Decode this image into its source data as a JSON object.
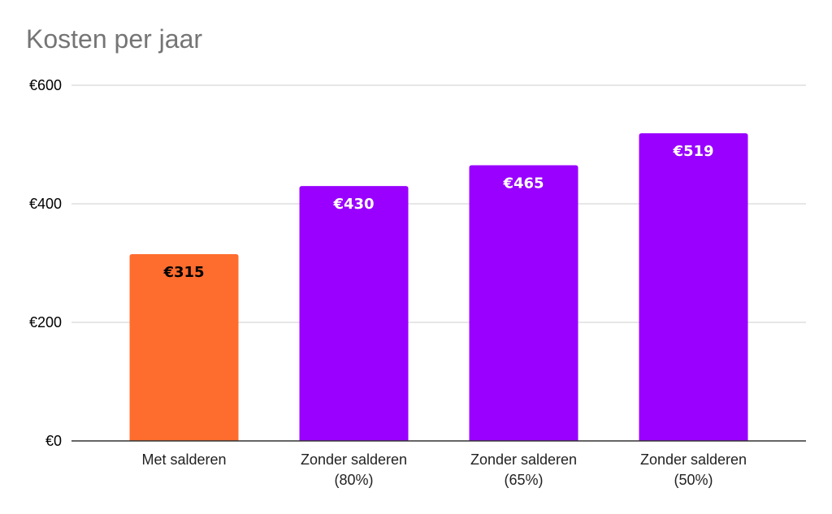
{
  "chart_data": {
    "type": "bar",
    "title": "Kosten per jaar",
    "xlabel": "",
    "ylabel": "",
    "ylim": [
      0,
      600
    ],
    "yticks": [
      {
        "value": 0,
        "label": "€0"
      },
      {
        "value": 200,
        "label": "€200"
      },
      {
        "value": 400,
        "label": "€400"
      },
      {
        "value": 600,
        "label": "€600"
      }
    ],
    "categories": [
      [
        "Met salderen"
      ],
      [
        "Zonder salderen",
        "(80%)"
      ],
      [
        "Zonder salderen",
        "(65%)"
      ],
      [
        "Zonder salderen",
        "(50%)"
      ]
    ],
    "values": [
      315,
      430,
      465,
      519
    ],
    "data_labels": [
      "€315",
      "€430",
      "€465",
      "€519"
    ],
    "bar_colors": [
      "#ff6d2e",
      "#9900ff",
      "#9900ff",
      "#9900ff"
    ],
    "data_label_colors": [
      "#000000",
      "#ffffff",
      "#ffffff",
      "#ffffff"
    ],
    "grid": true,
    "legend": "none"
  }
}
